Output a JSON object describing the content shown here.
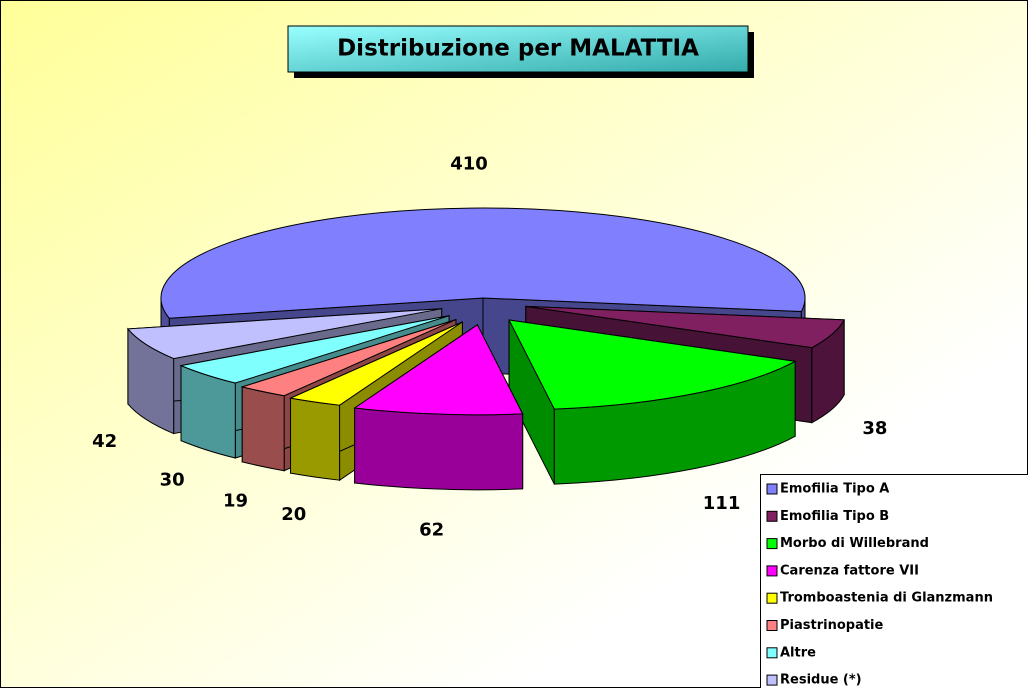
{
  "chart_data": {
    "type": "pie",
    "title": "Distribuzione per MALATTIA",
    "categories": [
      "Emofilia Tipo A",
      "Emofilia Tipo B",
      "Morbo di Willebrand",
      "Carenza fattore VII",
      "Tromboastenia di Glanzmann",
      "Piastrinopatie",
      "Altre",
      "Residue (*)"
    ],
    "values": [
      410,
      38,
      111,
      62,
      20,
      19,
      30,
      42
    ],
    "colors": [
      "#8080ff",
      "#802060",
      "#00ff00",
      "#ff00ff",
      "#ffff00",
      "#ff8080",
      "#80ffff",
      "#c0c0ff"
    ],
    "legend": "bottom-right"
  }
}
